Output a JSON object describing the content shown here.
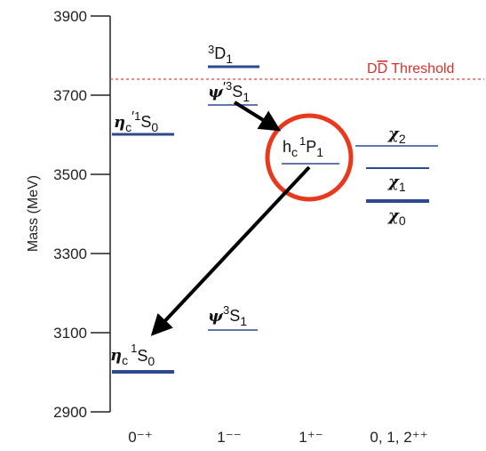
{
  "axis": {
    "ylabel": "Mass (MeV)",
    "ticks": [
      "3900",
      "3700",
      "3500",
      "3300",
      "3100",
      "2900"
    ]
  },
  "categories": [
    "0⁻⁺",
    "1⁻⁻",
    "1⁺⁻",
    "0, 1, 2⁺⁺"
  ],
  "threshold": {
    "label_prefix": "D",
    "label_bar": "D",
    "label_suffix": " Threshold",
    "mass": 3740,
    "color": "#e0453f"
  },
  "states": {
    "eta_c": {
      "symbol": "η",
      "sub": "c",
      "sup": "1",
      "term": "S",
      "term_sub": "0",
      "mass": 2980
    },
    "eta_c_prime": {
      "symbol": "η",
      "sub": "c",
      "prime": "′",
      "sup": "1",
      "term": "S",
      "term_sub": "0",
      "mass": 3600
    },
    "jpsi": {
      "symbol": "ψ",
      "sup": "3",
      "term": "S",
      "term_sub": "1",
      "mass": 3097
    },
    "psi_prime": {
      "symbol": "ψ",
      "prime": "′",
      "sup": "3",
      "term": "S",
      "term_sub": "1",
      "mass": 3686
    },
    "psi_3770": {
      "sup": "3",
      "term": "D",
      "term_sub": "1",
      "mass": 3773
    },
    "h_c": {
      "symbol": "h",
      "sub": "c",
      "sup": "1",
      "term": "P",
      "term_sub": "1",
      "mass": 3525
    },
    "chi_c2": {
      "symbol": "χ",
      "sub": "2",
      "mass": 3556
    },
    "chi_c1": {
      "symbol": "χ",
      "sub": "1",
      "mass": 3511
    },
    "chi_c0": {
      "symbol": "χ",
      "sub": "0",
      "mass": 3415
    }
  },
  "colors": {
    "level": "#2b4a8f",
    "arrow": "#000000",
    "highlight": "#e8391d",
    "axis": "#222222"
  }
}
